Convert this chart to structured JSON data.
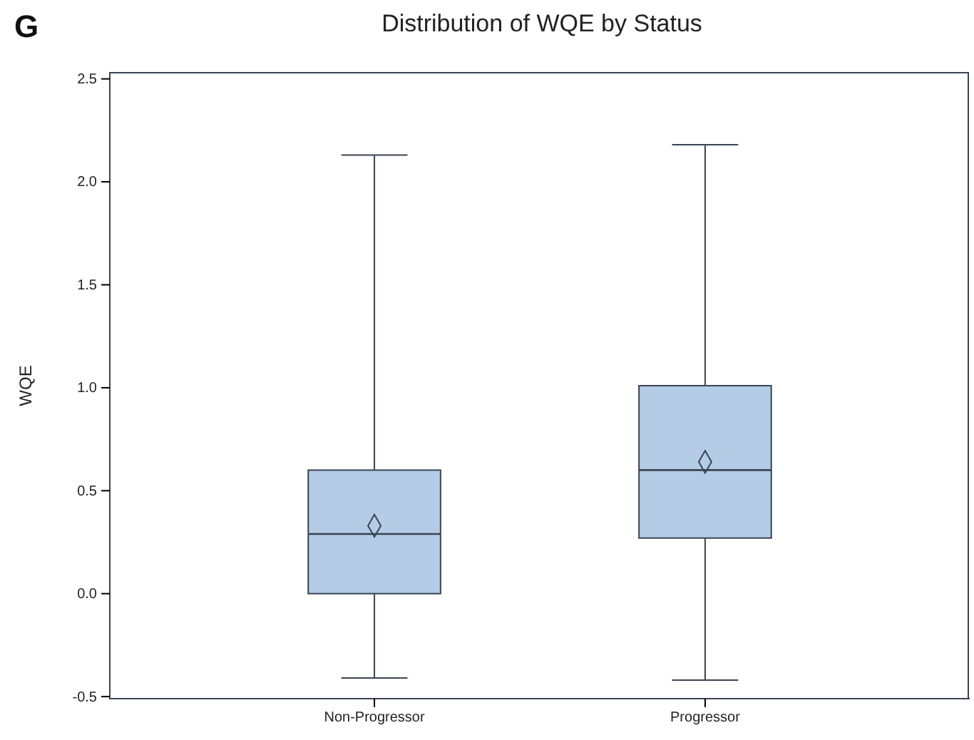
{
  "chart_data": {
    "type": "box",
    "title": "Distribution of WQE by Status",
    "ylabel": "WQE",
    "annotations": [
      "G"
    ],
    "categories": [
      "Non-Progressor",
      "Progressor"
    ],
    "series": [
      {
        "color": "#b5cce6",
        "boxes": [
          {
            "low": -0.41,
            "q1": 0.0,
            "median": 0.29,
            "q3": 0.6,
            "high": 2.13,
            "mean": 0.33
          },
          {
            "low": -0.42,
            "q1": 0.27,
            "median": 0.6,
            "q3": 1.01,
            "high": 2.18,
            "mean": 0.64
          }
        ]
      }
    ],
    "ylim": [
      -0.51,
      2.53
    ],
    "yticks": [
      {
        "value": -0.5,
        "label": "-0.5"
      },
      {
        "value": 0,
        "label": "0.0"
      },
      {
        "value": 0.5,
        "label": "0.5"
      },
      {
        "value": 1,
        "label": "1.0"
      },
      {
        "value": 1.5,
        "label": "1.5"
      },
      {
        "value": 2,
        "label": "2.0"
      },
      {
        "value": 2.5,
        "label": "2.5"
      }
    ],
    "grid": false,
    "marker": "diamond"
  }
}
